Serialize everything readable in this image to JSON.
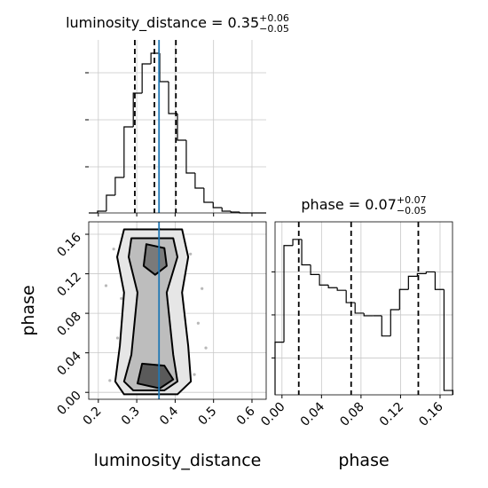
{
  "chart_data": [
    {
      "type": "histogram",
      "title": "luminosity_distance = 0.35",
      "title_upper": "+0.06",
      "title_lower": "−0.05",
      "bins": [
        0.175,
        0.198,
        0.221,
        0.244,
        0.267,
        0.291,
        0.314,
        0.337,
        0.36,
        0.383,
        0.406,
        0.429,
        0.452,
        0.475,
        0.499,
        0.522,
        0.545,
        0.568,
        0.591,
        0.614,
        0.637
      ],
      "counts": [
        0,
        2,
        20,
        40,
        97,
        135,
        168,
        180,
        148,
        112,
        82,
        45,
        28,
        12,
        6,
        2,
        1,
        0,
        0,
        0
      ],
      "xlim": [
        0.175,
        0.637
      ],
      "ylim": [
        0,
        195
      ],
      "xticks": [
        0.2,
        0.3,
        0.4,
        0.5,
        0.6
      ],
      "yticks": [
        52,
        105,
        158
      ],
      "show_tick_labels": false,
      "grid": true,
      "color": "#000000",
      "quantiles": [
        0.295,
        0.346,
        0.402
      ],
      "truth": 0.358,
      "truth_color": "#1f77b4"
    },
    {
      "type": "scatter",
      "x": [
        0.33,
        0.3,
        0.36,
        0.38,
        0.31,
        0.27,
        0.42,
        0.35,
        0.29,
        0.4,
        0.34,
        0.37,
        0.32,
        0.25,
        0.44,
        0.39,
        0.28,
        0.33,
        0.36,
        0.46,
        0.24,
        0.31,
        0.41,
        0.35,
        0.3,
        0.38,
        0.26,
        0.43,
        0.34,
        0.37,
        0.29,
        0.32,
        0.47,
        0.23,
        0.36,
        0.4,
        0.33,
        0.28,
        0.45,
        0.31,
        0.39,
        0.35,
        0.27,
        0.42,
        0.34,
        0.22,
        0.48,
        0.3,
        0.37,
        0.33
      ],
      "y": [
        0.15,
        0.02,
        0.11,
        0.06,
        0.135,
        0.005,
        0.09,
        0.16,
        0.04,
        0.125,
        0.075,
        0.015,
        0.1,
        0.055,
        0.14,
        0.03,
        0.12,
        0.008,
        0.165,
        0.07,
        0.145,
        0.085,
        0.01,
        0.045,
        0.158,
        0.13,
        0.095,
        0.025,
        0.115,
        0.05,
        0.068,
        0.162,
        0.105,
        0.012,
        0.035,
        0.15,
        0.08,
        0.142,
        0.018,
        0.058,
        0.098,
        0.128,
        0.065,
        0.155,
        0.003,
        0.108,
        0.045,
        0.118,
        0.088,
        0.138
      ],
      "point_color": "#9a9a9a",
      "contours": [
        {
          "fill": "#e6e6e6",
          "x": [
            0.267,
            0.418,
            0.434,
            0.418,
            0.434,
            0.441,
            0.406,
            0.267,
            0.244,
            0.256,
            0.267,
            0.249
          ],
          "y": [
            0.165,
            0.165,
            0.137,
            0.101,
            0.047,
            0.011,
            -0.002,
            -0.002,
            0.011,
            0.047,
            0.101,
            0.137
          ]
        },
        {
          "fill": "#bdbdbd",
          "x": [
            0.286,
            0.395,
            0.406,
            0.378,
            0.395,
            0.406,
            0.372,
            0.291,
            0.267,
            0.286,
            0.302,
            0.279
          ],
          "y": [
            0.156,
            0.156,
            0.137,
            0.101,
            0.038,
            0.011,
            0.002,
            0.002,
            0.011,
            0.038,
            0.101,
            0.137
          ]
        },
        {
          "fill": "#7a7a7a",
          "x": [
            0.325,
            0.372,
            0.378,
            0.348,
            0.318
          ],
          "y": [
            0.15,
            0.146,
            0.128,
            0.119,
            0.128
          ]
        },
        {
          "fill": "#5a5a5a",
          "x": [
            0.314,
            0.372,
            0.395,
            0.36,
            0.302
          ],
          "y": [
            0.029,
            0.027,
            0.013,
            0.004,
            0.009
          ]
        }
      ],
      "xlim": [
        0.175,
        0.637
      ],
      "ylim": [
        -0.007,
        0.1726
      ],
      "xticks": [
        0.2,
        0.3,
        0.4,
        0.5,
        0.6
      ],
      "yticks": [
        {
          "value": 0,
          "label": "0.00"
        },
        {
          "value": 0.04,
          "label": "0.04"
        },
        {
          "value": 0.08,
          "label": "0.08"
        },
        {
          "value": 0.12,
          "label": "0.12"
        },
        {
          "value": 0.16,
          "label": "0.16"
        }
      ],
      "xlabel": "luminosity_distance",
      "ylabel": "phase",
      "grid": true,
      "truth_x": 0.358,
      "truth_color": "#1f77b4"
    },
    {
      "type": "histogram",
      "title": "phase = 0.07",
      "title_upper": "+0.07",
      "title_lower": "−0.05",
      "bins": [
        -0.007,
        0.002,
        0.011,
        0.02,
        0.029,
        0.038,
        0.047,
        0.056,
        0.065,
        0.074,
        0.083,
        0.092,
        0.101,
        0.11,
        0.119,
        0.128,
        0.137,
        0.146,
        0.155,
        0.164,
        0.173
      ],
      "counts": [
        60,
        170,
        177,
        148,
        137,
        125,
        122,
        119,
        105,
        93,
        90,
        90,
        67,
        97,
        120,
        135,
        138,
        140,
        120,
        5
      ],
      "xlim": [
        -0.007,
        0.1726
      ],
      "ylim": [
        0,
        197
      ],
      "xticks": [
        {
          "value": 0,
          "label": "0.00"
        },
        {
          "value": 0.04,
          "label": "0.04"
        },
        {
          "value": 0.08,
          "label": "0.08"
        },
        {
          "value": 0.12,
          "label": "0.12"
        },
        {
          "value": 0.16,
          "label": "0.16"
        }
      ],
      "yticks": [
        42,
        91,
        140
      ],
      "xlabel": "phase",
      "show_tick_labels": true,
      "grid": true,
      "color": "#000000",
      "quantiles": [
        0.017,
        0.07,
        0.138
      ]
    }
  ]
}
